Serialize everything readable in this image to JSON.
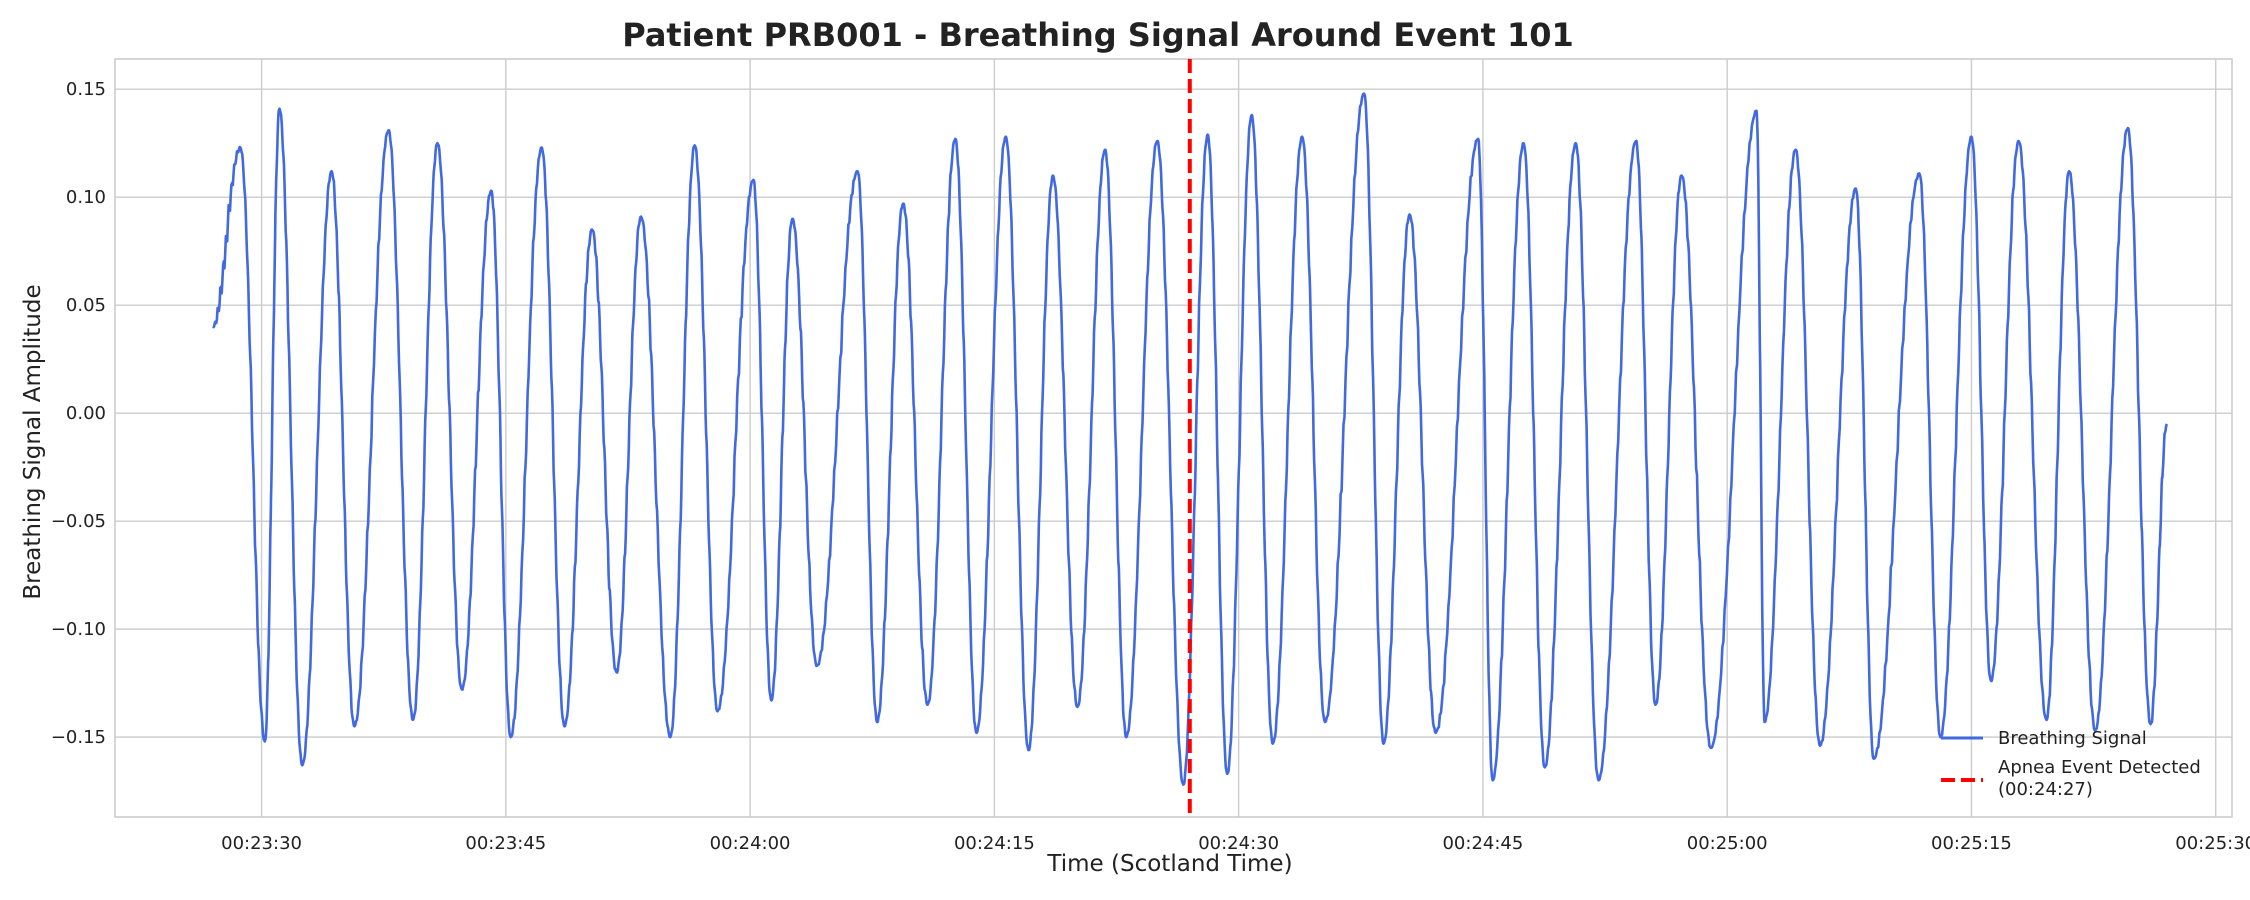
{
  "chart_data": {
    "type": "line",
    "title": "Patient PRB001 - Breathing Signal Around Event 101",
    "xlabel": "Time (Scotland Time)",
    "ylabel": "Breathing Signal Amplitude",
    "x_start": "00:23:27",
    "x_end": "00:25:27",
    "xlim": [
      "00:23:21",
      "00:25:31"
    ],
    "ylim": [
      -0.187,
      0.164
    ],
    "x_ticks": [
      "00:23:30",
      "00:23:45",
      "00:24:00",
      "00:24:15",
      "00:24:30",
      "00:24:45",
      "00:25:00",
      "00:25:15",
      "00:25:30"
    ],
    "y_ticks": [
      0.15,
      0.1,
      0.05,
      0.0,
      -0.05,
      -0.1,
      -0.15
    ],
    "y_tick_labels": [
      "0.15",
      "0.10",
      "0.05",
      "0.00",
      "−0.05",
      "−0.10",
      "−0.15"
    ],
    "grid": true,
    "legend_position": "bottom-right",
    "series": [
      {
        "name": "Breathing Signal",
        "color": "#4169e1",
        "style": "solid",
        "peaks": [
          [
            "00:23:28.7",
            0.123
          ],
          [
            "00:23:30.2",
            -0.152
          ],
          [
            "00:23:31.1",
            0.141
          ],
          [
            "00:23:32.5",
            -0.163
          ],
          [
            "00:23:34.3",
            0.112
          ],
          [
            "00:23:35.7",
            -0.145
          ],
          [
            "00:23:37.8",
            0.131
          ],
          [
            "00:23:39.3",
            -0.142
          ],
          [
            "00:23:40.8",
            0.125
          ],
          [
            "00:23:42.3",
            -0.128
          ],
          [
            "00:23:44.1",
            0.103
          ],
          [
            "00:23:45.3",
            -0.15
          ],
          [
            "00:23:47.2",
            0.123
          ],
          [
            "00:23:48.6",
            -0.145
          ],
          [
            "00:23:50.3",
            0.085
          ],
          [
            "00:23:51.8",
            -0.12
          ],
          [
            "00:23:53.3",
            0.091
          ],
          [
            "00:23:55.1",
            -0.15
          ],
          [
            "00:23:56.6",
            0.124
          ],
          [
            "00:23:58.0",
            -0.138
          ],
          [
            "00:24:00.2",
            0.108
          ],
          [
            "00:24:01.3",
            -0.133
          ],
          [
            "00:24:02.6",
            0.09
          ],
          [
            "00:24:04.1",
            -0.117
          ],
          [
            "00:24:06.6",
            0.112
          ],
          [
            "00:24:07.8",
            -0.143
          ],
          [
            "00:24:09.4",
            0.097
          ],
          [
            "00:24:10.9",
            -0.135
          ],
          [
            "00:24:12.6",
            0.127
          ],
          [
            "00:24:13.9",
            -0.148
          ],
          [
            "00:24:15.7",
            0.128
          ],
          [
            "00:24:17.1",
            -0.156
          ],
          [
            "00:24:18.6",
            0.11
          ],
          [
            "00:24:20.1",
            -0.136
          ],
          [
            "00:24:21.8",
            0.122
          ],
          [
            "00:24:23.1",
            -0.15
          ],
          [
            "00:24:25.0",
            0.126
          ],
          [
            "00:24:26.6",
            -0.172
          ],
          [
            "00:24:28.1",
            0.129
          ],
          [
            "00:24:29.3",
            -0.167
          ],
          [
            "00:24:30.8",
            0.138
          ],
          [
            "00:24:32.1",
            -0.153
          ],
          [
            "00:24:33.9",
            0.128
          ],
          [
            "00:24:35.3",
            -0.143
          ],
          [
            "00:24:37.7",
            0.148
          ],
          [
            "00:24:38.9",
            -0.153
          ],
          [
            "00:24:40.5",
            0.092
          ],
          [
            "00:24:42.1",
            -0.148
          ],
          [
            "00:24:44.7",
            0.127
          ],
          [
            "00:24:45.6",
            -0.17
          ],
          [
            "00:24:47.5",
            0.125
          ],
          [
            "00:24:48.8",
            -0.164
          ],
          [
            "00:24:50.7",
            0.125
          ],
          [
            "00:24:52.1",
            -0.17
          ],
          [
            "00:24:54.4",
            0.126
          ],
          [
            "00:24:55.6",
            -0.135
          ],
          [
            "00:24:57.2",
            0.11
          ],
          [
            "00:24:59.0",
            -0.155
          ],
          [
            "00:25:01.8",
            0.14
          ],
          [
            "00:25:02.3",
            -0.143
          ],
          [
            "00:25:04.2",
            0.122
          ],
          [
            "00:25:05.7",
            -0.154
          ],
          [
            "00:25:07.9",
            0.104
          ],
          [
            "00:25:09.0",
            -0.16
          ],
          [
            "00:25:11.8",
            0.111
          ],
          [
            "00:25:13.1",
            -0.15
          ],
          [
            "00:25:15.0",
            0.128
          ],
          [
            "00:25:16.2",
            -0.124
          ],
          [
            "00:25:17.9",
            0.126
          ],
          [
            "00:25:19.6",
            -0.142
          ],
          [
            "00:25:21.0",
            0.112
          ],
          [
            "00:25:22.6",
            -0.147
          ],
          [
            "00:25:24.6",
            0.132
          ],
          [
            "00:25:26.0",
            -0.144
          ]
        ],
        "start_value": 0.04,
        "end_value": -0.005
      },
      {
        "name": "Apnea Event Detected\n(00:24:27)",
        "color": "#ff0000",
        "style": "dashed",
        "x": "00:24:27"
      }
    ]
  }
}
